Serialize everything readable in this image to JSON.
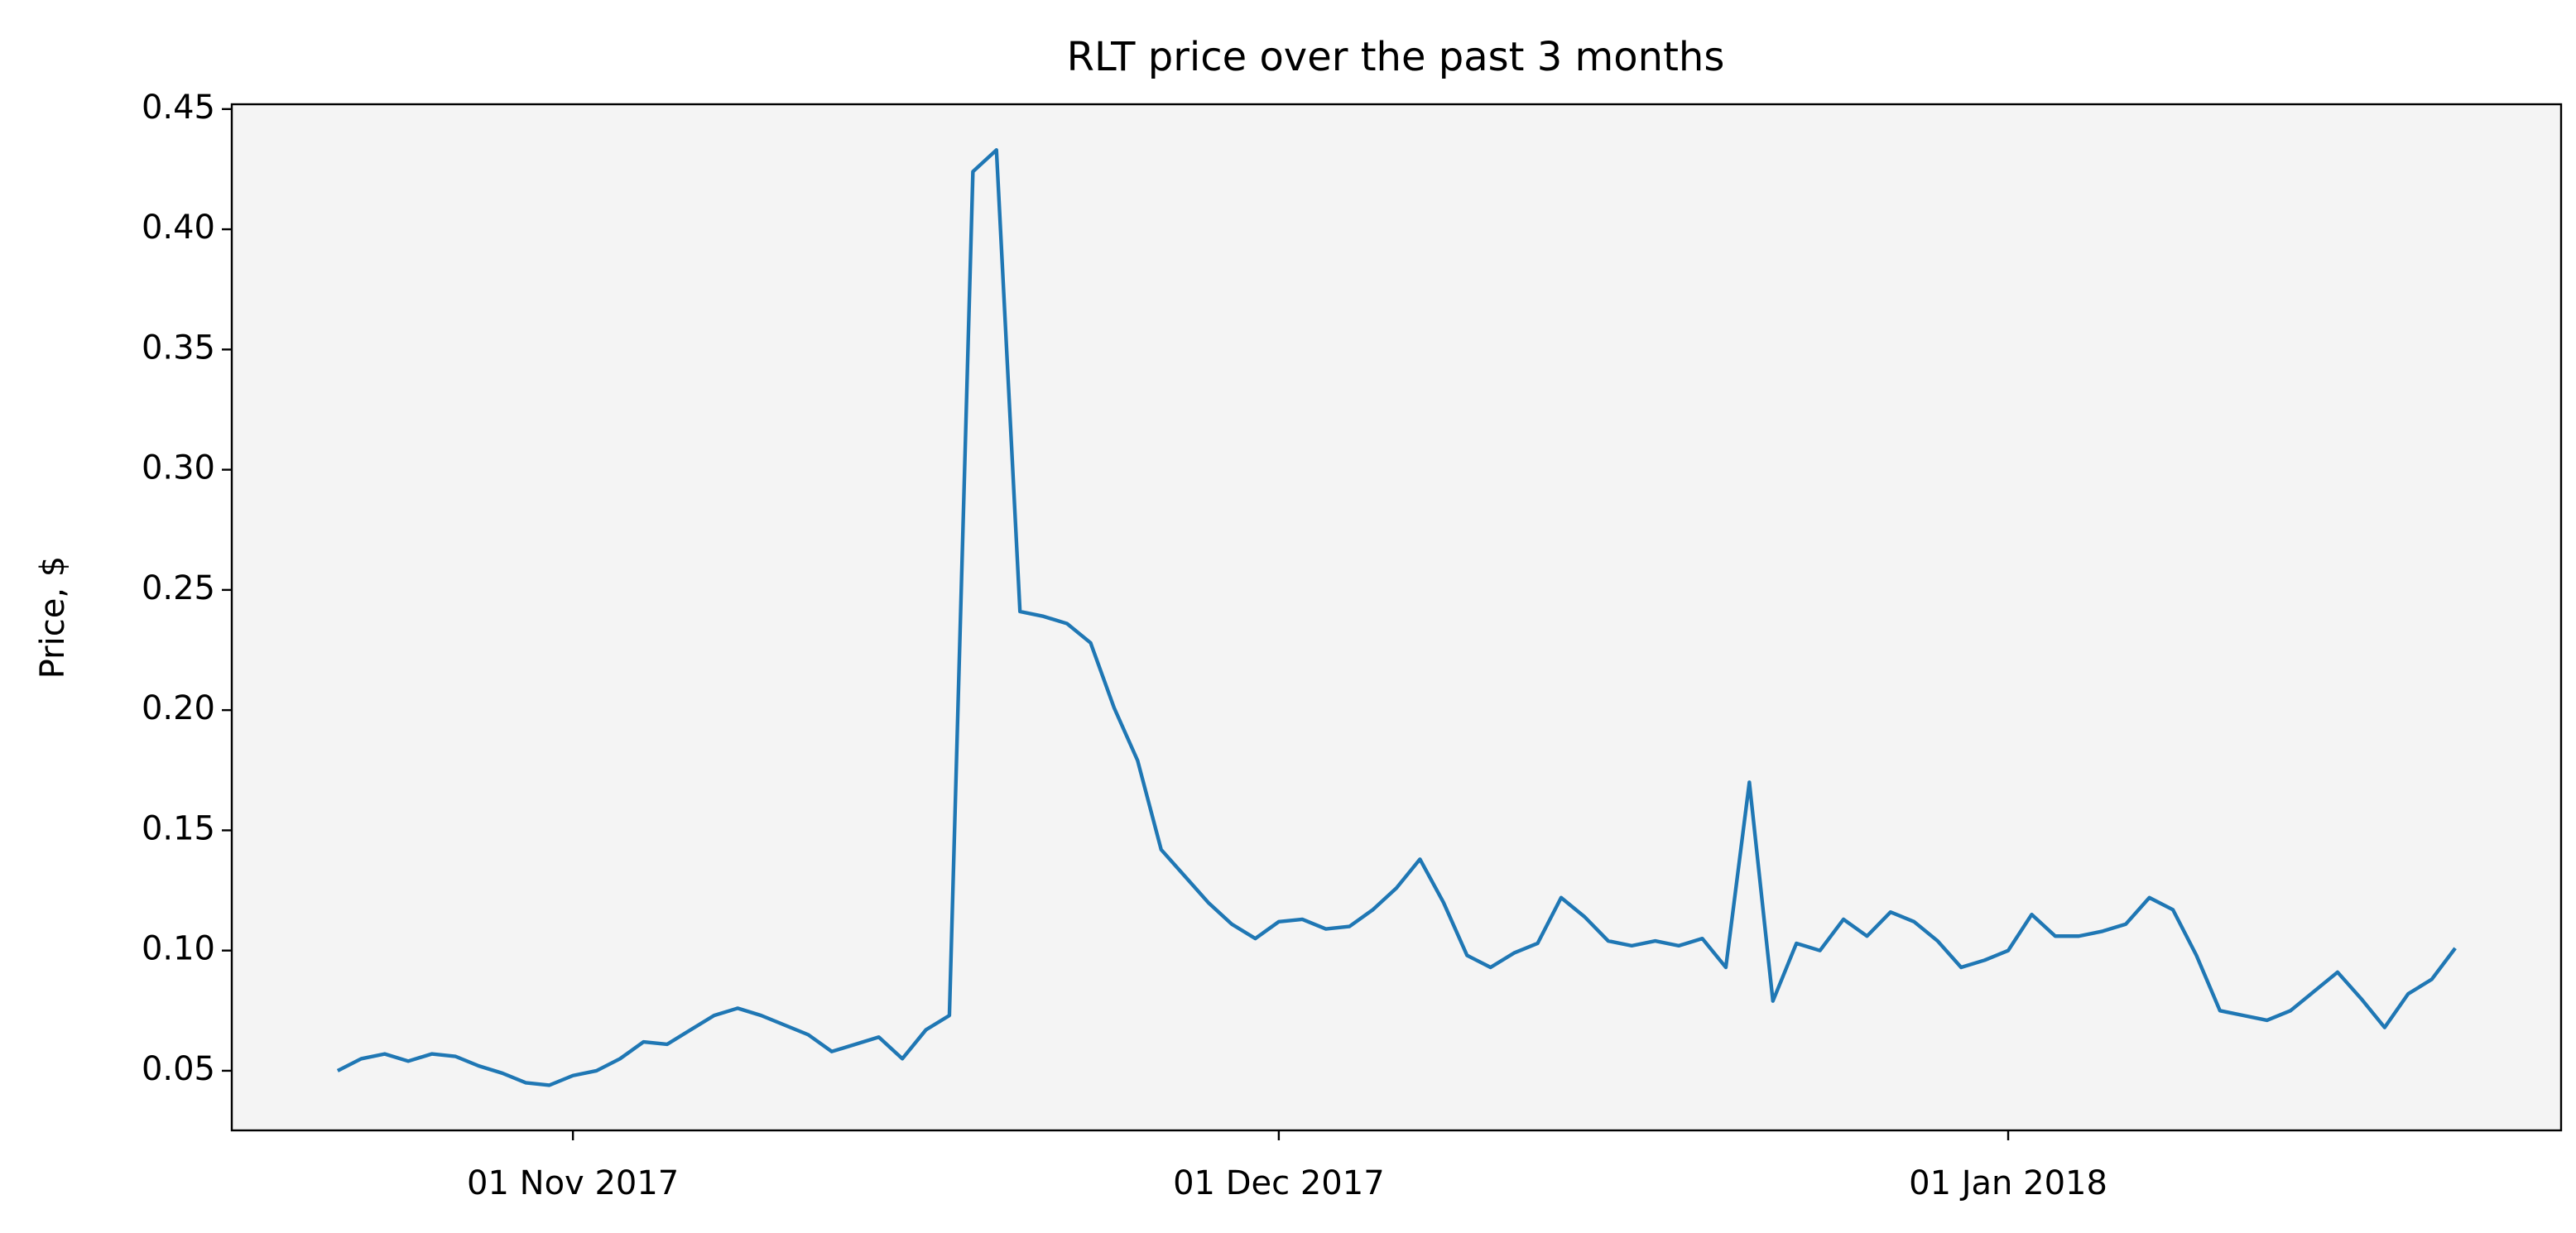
{
  "chart_data": {
    "type": "line",
    "title": "RLT price over the past 3 months",
    "y_label": "Price, $",
    "x": [
      "2017-10-22",
      "2017-10-23",
      "2017-10-24",
      "2017-10-25",
      "2017-10-26",
      "2017-10-27",
      "2017-10-28",
      "2017-10-29",
      "2017-10-30",
      "2017-10-31",
      "2017-11-01",
      "2017-11-02",
      "2017-11-03",
      "2017-11-04",
      "2017-11-05",
      "2017-11-06",
      "2017-11-07",
      "2017-11-08",
      "2017-11-09",
      "2017-11-10",
      "2017-11-11",
      "2017-11-12",
      "2017-11-13",
      "2017-11-14",
      "2017-11-15",
      "2017-11-16",
      "2017-11-17",
      "2017-11-18",
      "2017-11-19",
      "2017-11-20",
      "2017-11-21",
      "2017-11-22",
      "2017-11-23",
      "2017-11-24",
      "2017-11-25",
      "2017-11-26",
      "2017-11-27",
      "2017-11-28",
      "2017-11-29",
      "2017-11-30",
      "2017-12-01",
      "2017-12-02",
      "2017-12-03",
      "2017-12-04",
      "2017-12-05",
      "2017-12-06",
      "2017-12-07",
      "2017-12-08",
      "2017-12-09",
      "2017-12-10",
      "2017-12-11",
      "2017-12-12",
      "2017-12-13",
      "2017-12-14",
      "2017-12-15",
      "2017-12-16",
      "2017-12-17",
      "2017-12-18",
      "2017-12-19",
      "2017-12-20",
      "2017-12-21",
      "2017-12-22",
      "2017-12-23",
      "2017-12-24",
      "2017-12-25",
      "2017-12-26",
      "2017-12-27",
      "2017-12-28",
      "2017-12-29",
      "2017-12-30",
      "2017-12-31",
      "2018-01-01",
      "2018-01-02",
      "2018-01-03",
      "2018-01-04",
      "2018-01-05",
      "2018-01-06",
      "2018-01-07",
      "2018-01-08",
      "2018-01-09",
      "2018-01-10",
      "2018-01-11",
      "2018-01-12",
      "2018-01-13",
      "2018-01-14",
      "2018-01-15",
      "2018-01-16",
      "2018-01-17",
      "2018-01-18",
      "2018-01-19",
      "2018-01-20"
    ],
    "values": [
      0.05,
      0.055,
      0.057,
      0.054,
      0.057,
      0.056,
      0.052,
      0.049,
      0.045,
      0.044,
      0.048,
      0.05,
      0.055,
      0.062,
      0.061,
      0.067,
      0.073,
      0.076,
      0.073,
      0.069,
      0.065,
      0.058,
      0.061,
      0.064,
      0.055,
      0.067,
      0.073,
      0.424,
      0.433,
      0.241,
      0.239,
      0.236,
      0.228,
      0.201,
      0.179,
      0.142,
      0.131,
      0.12,
      0.111,
      0.105,
      0.112,
      0.113,
      0.109,
      0.11,
      0.117,
      0.126,
      0.138,
      0.12,
      0.098,
      0.093,
      0.099,
      0.103,
      0.122,
      0.114,
      0.104,
      0.102,
      0.104,
      0.102,
      0.105,
      0.093,
      0.17,
      0.079,
      0.103,
      0.1,
      0.113,
      0.106,
      0.116,
      0.112,
      0.104,
      0.093,
      0.096,
      0.1,
      0.115,
      0.106,
      0.106,
      0.108,
      0.111,
      0.122,
      0.117,
      0.098,
      0.075,
      0.073,
      0.071,
      0.075,
      0.083,
      0.091,
      0.08,
      0.068,
      0.082,
      0.088,
      0.101
    ],
    "color": "#1f77b4",
    "xlim": [
      "2017-10-17T12:00:00Z",
      "2018-01-24T12:00:00Z"
    ],
    "xticks": [
      {
        "value": "2017-11-01",
        "label": "01 Nov 2017"
      },
      {
        "value": "2017-12-01",
        "label": "01 Dec 2017"
      },
      {
        "value": "2018-01-01",
        "label": "01 Jan 2018"
      }
    ],
    "ylim": [
      0.0252,
      0.452
    ],
    "yticks": [
      0.05,
      {
        "value": 0.1,
        "label": "0.10"
      },
      0.15,
      {
        "value": 0.2,
        "label": "0.20"
      },
      0.25,
      {
        "value": 0.3,
        "label": "0.30"
      },
      0.35,
      {
        "value": 0.4,
        "label": "0.40"
      },
      0.45
    ],
    "grid": false
  }
}
